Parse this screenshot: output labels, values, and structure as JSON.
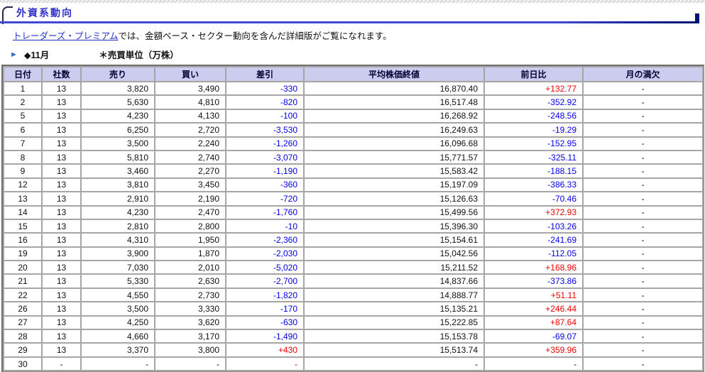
{
  "page": {
    "title": "外資系動向",
    "intro_link": "トレーダーズ・プレミアム",
    "intro_text": "では、金額ベース・セクター動向を含んだ詳細版がご覧になれます。",
    "month_marker": "◆11月",
    "unit_note": "＊売買単位（万株）"
  },
  "icons": {
    "right_arrow": "►"
  },
  "colors": {
    "title_blue": "#3333cc",
    "link_blue": "#2233cc",
    "negative_blue": "#0000ee",
    "positive_red": "#ee0000",
    "header_bg": "#ccccee",
    "grid_gray": "#a6a6a6"
  },
  "table": {
    "columns": [
      "日付",
      "社数",
      "売り",
      "買い",
      "差引",
      "平均株価終値",
      "前日比",
      "月の満欠"
    ],
    "rows": [
      [
        "1",
        "13",
        "3,820",
        "3,490",
        "-330",
        "16,870.40",
        "+132.77",
        "-"
      ],
      [
        "2",
        "13",
        "5,630",
        "4,810",
        "-820",
        "16,517.48",
        "-352.92",
        "-"
      ],
      [
        "5",
        "13",
        "4,230",
        "4,130",
        "-100",
        "16,268.92",
        "-248.56",
        "-"
      ],
      [
        "6",
        "13",
        "6,250",
        "2,720",
        "-3,530",
        "16,249.63",
        "-19.29",
        "-"
      ],
      [
        "7",
        "13",
        "3,500",
        "2,240",
        "-1,260",
        "16,096.68",
        "-152.95",
        "-"
      ],
      [
        "8",
        "13",
        "5,810",
        "2,740",
        "-3,070",
        "15,771.57",
        "-325.11",
        "-"
      ],
      [
        "9",
        "13",
        "3,460",
        "2,270",
        "-1,190",
        "15,583.42",
        "-188.15",
        "-"
      ],
      [
        "12",
        "13",
        "3,810",
        "3,450",
        "-360",
        "15,197.09",
        "-386.33",
        "-"
      ],
      [
        "13",
        "13",
        "2,910",
        "2,190",
        "-720",
        "15,126.63",
        "-70.46",
        "-"
      ],
      [
        "14",
        "13",
        "4,230",
        "2,470",
        "-1,760",
        "15,499.56",
        "+372.93",
        "-"
      ],
      [
        "15",
        "13",
        "2,810",
        "2,800",
        "-10",
        "15,396.30",
        "-103.26",
        "-"
      ],
      [
        "16",
        "13",
        "4,310",
        "1,950",
        "-2,360",
        "15,154.61",
        "-241.69",
        "-"
      ],
      [
        "19",
        "13",
        "3,900",
        "1,870",
        "-2,030",
        "15,042.56",
        "-112.05",
        "-"
      ],
      [
        "20",
        "13",
        "7,030",
        "2,010",
        "-5,020",
        "15,211.52",
        "+168.96",
        "-"
      ],
      [
        "21",
        "13",
        "5,330",
        "2,630",
        "-2,700",
        "14,837.66",
        "-373.86",
        "-"
      ],
      [
        "22",
        "13",
        "4,550",
        "2,730",
        "-1,820",
        "14,888.77",
        "+51.11",
        "-"
      ],
      [
        "26",
        "13",
        "3,500",
        "3,330",
        "-170",
        "15,135.21",
        "+246.44",
        "-"
      ],
      [
        "27",
        "13",
        "4,250",
        "3,620",
        "-630",
        "15,222.85",
        "+87.64",
        "-"
      ],
      [
        "28",
        "13",
        "4,660",
        "3,170",
        "-1,490",
        "15,153.78",
        "-69.07",
        "-"
      ],
      [
        "29",
        "13",
        "3,370",
        "3,800",
        "+430",
        "15,513.74",
        "+359.96",
        "-"
      ],
      [
        "30",
        "-",
        "-",
        "-",
        "-",
        "-",
        "-",
        "-"
      ]
    ]
  }
}
